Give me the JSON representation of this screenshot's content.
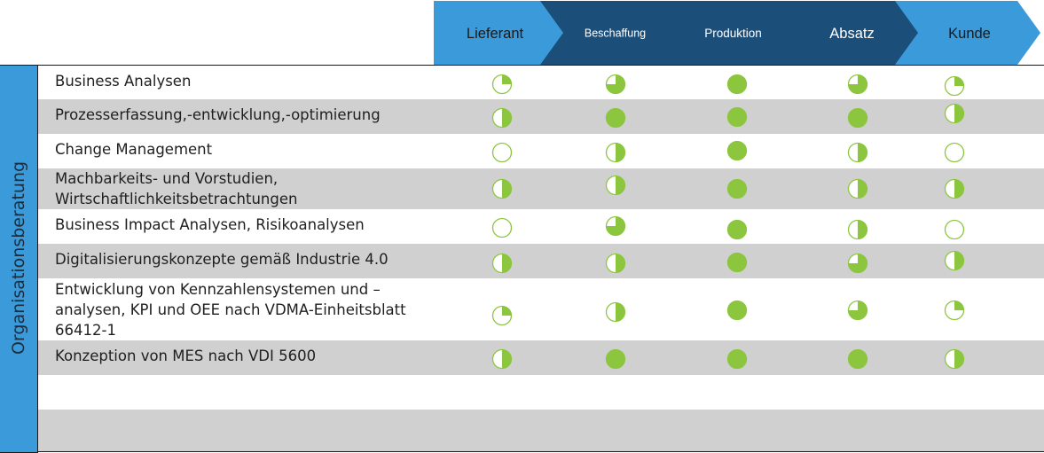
{
  "colors": {
    "chevron_light": "#3b9ad9",
    "chevron_dark": "#1b4e79",
    "filled_green": "#8cc63f",
    "row_gray": "#d0d0d0",
    "side_bar": "#3b9ad9"
  },
  "chevrons": [
    {
      "label": "Lieferant",
      "tone": "light"
    },
    {
      "label": "Beschaffung",
      "tone": "dark"
    },
    {
      "label": "Produktion",
      "tone": "dark"
    },
    {
      "label": "Absatz",
      "tone": "dark"
    },
    {
      "label": "Kunde",
      "tone": "light"
    }
  ],
  "side_label": "Organisationsberatung",
  "rows": [
    {
      "label": "Business Analysen",
      "values": [
        0.25,
        0.75,
        1,
        0.75,
        0.25
      ]
    },
    {
      "label": "Prozesserfassung,-entwicklung,-optimierung",
      "values": [
        0.5,
        1,
        1,
        1,
        0.5
      ]
    },
    {
      "label": "Change Management",
      "values": [
        0,
        0.5,
        1,
        0.5,
        0
      ]
    },
    {
      "label": "Machbarkeits- und Vorstudien, Wirtschaftlichkeitsbetrachtungen",
      "lines": [
        "Machbarkeits- und Vorstudien,",
        "Wirtschaftlichkeitsbetrachtungen"
      ],
      "values": [
        0.5,
        0.5,
        1,
        0.5,
        0.5
      ]
    },
    {
      "label": "Business Impact Analysen, Risikoanalysen",
      "values": [
        0,
        0.75,
        1,
        0.5,
        0
      ]
    },
    {
      "label": "Digitalisierungskonzepte gemäß Industrie 4.0",
      "values": [
        0.5,
        0.5,
        1,
        0.75,
        0.5
      ]
    },
    {
      "label": "Entwicklung von Kennzahlensystemen und –analysen, KPI und OEE nach VDMA-Einheitsblatt 66412-1",
      "lines": [
        "Entwicklung von Kennzahlensystemen und –",
        "analysen, KPI und OEE nach VDMA-Einheitsblatt",
        "66412-1"
      ],
      "values": [
        0.25,
        0.5,
        1,
        0.75,
        0.25
      ]
    },
    {
      "label": "Konzeption von MES nach VDI 5600",
      "values": [
        0.5,
        1,
        1,
        1,
        0.5
      ]
    },
    {
      "label": "",
      "values": []
    },
    {
      "label": "",
      "values": []
    }
  ]
}
